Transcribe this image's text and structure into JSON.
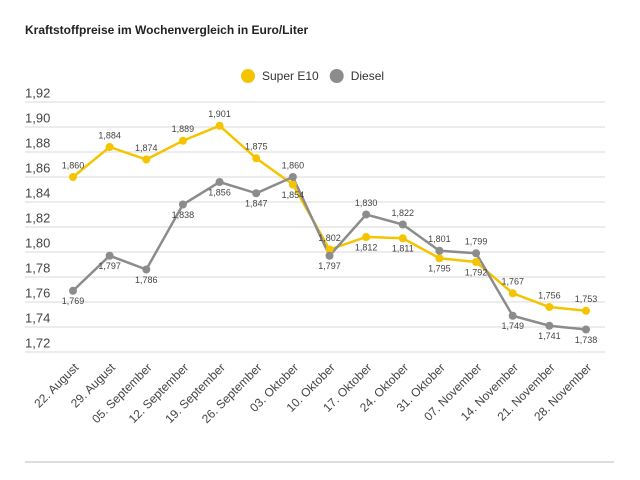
{
  "chart_data": {
    "type": "line",
    "title": "Kraftstoffpreise im Wochenvergleich in Euro/Liter",
    "categories": [
      "22. August",
      "29. August",
      "05. September",
      "12. September",
      "19. September",
      "26. September",
      "03. Oktober",
      "10. Oktober",
      "17. Oktober",
      "24. Oktober",
      "31. Oktober",
      "07. November",
      "14. November",
      "21. November",
      "28. November"
    ],
    "series": [
      {
        "name": "Super E10",
        "color": "#f5c400",
        "values": [
          1.86,
          1.884,
          1.874,
          1.889,
          1.901,
          1.875,
          1.854,
          1.802,
          1.812,
          1.811,
          1.795,
          1.792,
          1.767,
          1.756,
          1.753
        ],
        "value_labels": [
          "1,860",
          "1,884",
          "1,874",
          "1,889",
          "1,901",
          "1,875",
          "1,854",
          "1,802",
          "1,812",
          "1,811",
          "1,795",
          "1,792",
          "1,767",
          "1,756",
          "1,753"
        ]
      },
      {
        "name": "Diesel",
        "color": "#8c8c8c",
        "values": [
          1.769,
          1.797,
          1.786,
          1.838,
          1.856,
          1.847,
          1.86,
          1.797,
          1.83,
          1.822,
          1.801,
          1.799,
          1.749,
          1.741,
          1.738
        ],
        "value_labels": [
          "1,769",
          "1,797",
          "1,786",
          "1,838",
          "1,856",
          "1,847",
          "1,860",
          "1,797",
          "1,830",
          "1,822",
          "1,801",
          "1,799",
          "1,749",
          "1,741",
          "1,738"
        ]
      }
    ],
    "ylim": [
      1.72,
      1.92
    ],
    "yticks": [
      {
        "value": 1.72,
        "label": "1,72"
      },
      {
        "value": 1.74,
        "label": "1,74"
      },
      {
        "value": 1.76,
        "label": "1,76"
      },
      {
        "value": 1.78,
        "label": "1,78"
      },
      {
        "value": 1.8,
        "label": "1,80"
      },
      {
        "value": 1.82,
        "label": "1,82"
      },
      {
        "value": 1.84,
        "label": "1,84"
      },
      {
        "value": 1.86,
        "label": "1,86"
      },
      {
        "value": 1.88,
        "label": "1,88"
      },
      {
        "value": 1.9,
        "label": "1,90"
      },
      {
        "value": 1.92,
        "label": "1,92"
      }
    ],
    "grid": true,
    "legend": "top"
  }
}
